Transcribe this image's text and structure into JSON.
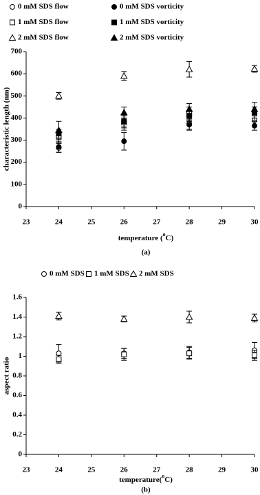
{
  "chart_data": [
    {
      "type": "scatter",
      "caption": "(a)",
      "y_label": "characteristic length (nm)",
      "x_label": [
        "temperature (",
        "o",
        "C)"
      ],
      "x": [
        24,
        26,
        28,
        30
      ],
      "xlim": [
        23,
        30
      ],
      "xticks": [
        23,
        24,
        25,
        26,
        27,
        28,
        29,
        30
      ],
      "ylim": [
        0,
        700
      ],
      "yticks": [
        0,
        100,
        200,
        300,
        400,
        500,
        600,
        700
      ],
      "series": [
        {
          "name": "0 mM SDS flow",
          "marker": "circle",
          "filled": false,
          "color": "#000000",
          "values": [
            265,
            385,
            375,
            390
          ],
          "errors": [
            20,
            30,
            25,
            25
          ]
        },
        {
          "name": "0 mM SDS vorticity",
          "marker": "circle",
          "filled": true,
          "color": "#000000",
          "values": [
            270,
            295,
            370,
            365
          ],
          "errors": [
            25,
            40,
            25,
            20
          ]
        },
        {
          "name": "1 mM SDS flow",
          "marker": "square",
          "filled": false,
          "color": "#000000",
          "values": [
            315,
            380,
            420,
            420
          ],
          "errors": [
            25,
            35,
            30,
            30
          ]
        },
        {
          "name": "1 mM SDS vorticity",
          "marker": "square",
          "filled": true,
          "color": "#000000",
          "values": [
            330,
            385,
            410,
            425
          ],
          "errors": [
            20,
            25,
            25,
            25
          ]
        },
        {
          "name": "2 mM SDS flow",
          "marker": "triangle",
          "filled": false,
          "color": "#000000",
          "values": [
            500,
            590,
            620,
            622
          ],
          "errors": [
            15,
            20,
            35,
            15
          ]
        },
        {
          "name": "2 mM SDS vorticity",
          "marker": "triangle",
          "filled": true,
          "color": "#000000",
          "values": [
            345,
            425,
            440,
            440
          ],
          "errors": [
            40,
            25,
            25,
            30
          ]
        }
      ]
    },
    {
      "type": "scatter",
      "caption": "(b)",
      "y_label": "aspect ratio",
      "x_label": [
        "temperature(",
        "o",
        "C)"
      ],
      "x": [
        24,
        26,
        28,
        30
      ],
      "xlim": [
        23,
        30
      ],
      "xticks": [
        23,
        24,
        25,
        26,
        27,
        28,
        29,
        30
      ],
      "ylim": [
        0,
        1.6
      ],
      "yticks": [
        0,
        0.2,
        0.4,
        0.6,
        0.8,
        1,
        1.2,
        1.4,
        1.6
      ],
      "series": [
        {
          "name": "0 mM SDS",
          "marker": "circle",
          "filled": false,
          "color": "#000000",
          "values": [
            1.03,
            1.03,
            1.04,
            1.06
          ],
          "errors": [
            0.09,
            0.05,
            0.06,
            0.08
          ]
        },
        {
          "name": "1 mM SDS",
          "marker": "square",
          "filled": false,
          "color": "#000000",
          "values": [
            0.97,
            1.02,
            1.03,
            1.01
          ],
          "errors": [
            0.04,
            0.06,
            0.06,
            0.05
          ]
        },
        {
          "name": "2 mM SDS",
          "marker": "triangle",
          "filled": false,
          "color": "#000000",
          "values": [
            1.41,
            1.38,
            1.4,
            1.39
          ],
          "errors": [
            0.04,
            0.03,
            0.06,
            0.04
          ]
        }
      ]
    }
  ]
}
